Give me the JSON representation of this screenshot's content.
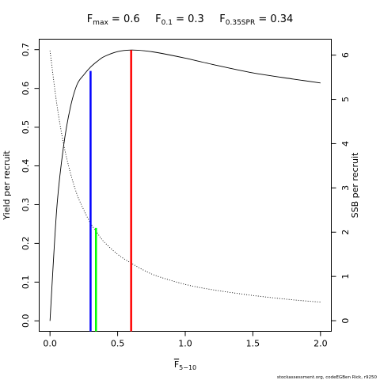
{
  "chart_data": {
    "type": "line",
    "title_parts": [
      {
        "base": "F",
        "sub": "max",
        "value": " = 0.6"
      },
      {
        "base": "F",
        "sub": "0.1",
        "value": " = 0.3"
      },
      {
        "base": "F",
        "sub": "0.35SPR",
        "value": " = 0.34"
      }
    ],
    "xlabel": {
      "base": "F",
      "sub": "5−10"
    },
    "ylabel_left": "Yield per recruit",
    "ylabel_right": "SSB per recruit",
    "xlim": [
      -0.08,
      2.08
    ],
    "ylim_left": [
      -0.027,
      0.727
    ],
    "ylim_right": [
      -0.24,
      6.36
    ],
    "x_ticks": [
      0,
      0.5,
      1,
      1.5,
      2
    ],
    "x_tick_labels": [
      "0.0",
      "0.5",
      "1.0",
      "1.5",
      "2.0"
    ],
    "y_left_ticks": [
      0,
      0.1,
      0.2,
      0.3,
      0.4,
      0.5,
      0.6,
      0.7
    ],
    "y_left_tick_labels": [
      "0.0",
      "0.1",
      "0.2",
      "0.3",
      "0.4",
      "0.5",
      "0.6",
      "0.7"
    ],
    "y_right_ticks": [
      0,
      1,
      2,
      3,
      4,
      5,
      6
    ],
    "y_right_tick_labels": [
      "0",
      "1",
      "2",
      "3",
      "4",
      "5",
      "6"
    ],
    "grid": false,
    "series": [
      {
        "name": "Yield per recruit",
        "axis": "left",
        "style": "solid",
        "color": "#000000",
        "x": [
          0,
          0.05,
          0.1,
          0.15,
          0.2,
          0.25,
          0.3,
          0.35,
          0.4,
          0.5,
          0.6,
          0.7,
          0.8,
          1.0,
          1.2,
          1.5,
          1.8,
          2.0
        ],
        "y": [
          0,
          0.29,
          0.45,
          0.55,
          0.61,
          0.635,
          0.655,
          0.67,
          0.682,
          0.695,
          0.699,
          0.697,
          0.692,
          0.678,
          0.662,
          0.64,
          0.624,
          0.614
        ]
      },
      {
        "name": "SSB per recruit",
        "axis": "right",
        "style": "dotted",
        "color": "#000000",
        "x": [
          0,
          0.05,
          0.1,
          0.15,
          0.2,
          0.25,
          0.3,
          0.35,
          0.4,
          0.5,
          0.6,
          0.7,
          0.8,
          1.0,
          1.2,
          1.5,
          1.8,
          2.0
        ],
        "y": [
          6.1,
          4.9,
          4.0,
          3.35,
          2.85,
          2.5,
          2.2,
          1.98,
          1.78,
          1.5,
          1.3,
          1.13,
          1.0,
          0.82,
          0.7,
          0.57,
          0.47,
          0.42
        ]
      }
    ],
    "reference_lines": [
      {
        "label": "F0.1",
        "x": 0.3,
        "y_top": 0.645,
        "color": "#0000ff"
      },
      {
        "label": "F0.35SPR",
        "x": 0.34,
        "y_top": 0.24,
        "color": "#00ff00"
      },
      {
        "label": "Fmax",
        "x": 0.6,
        "y_top": 0.699,
        "color": "#ff0000"
      }
    ],
    "footer": "stockassessment.org, codeEGBen Rick, r9250"
  }
}
